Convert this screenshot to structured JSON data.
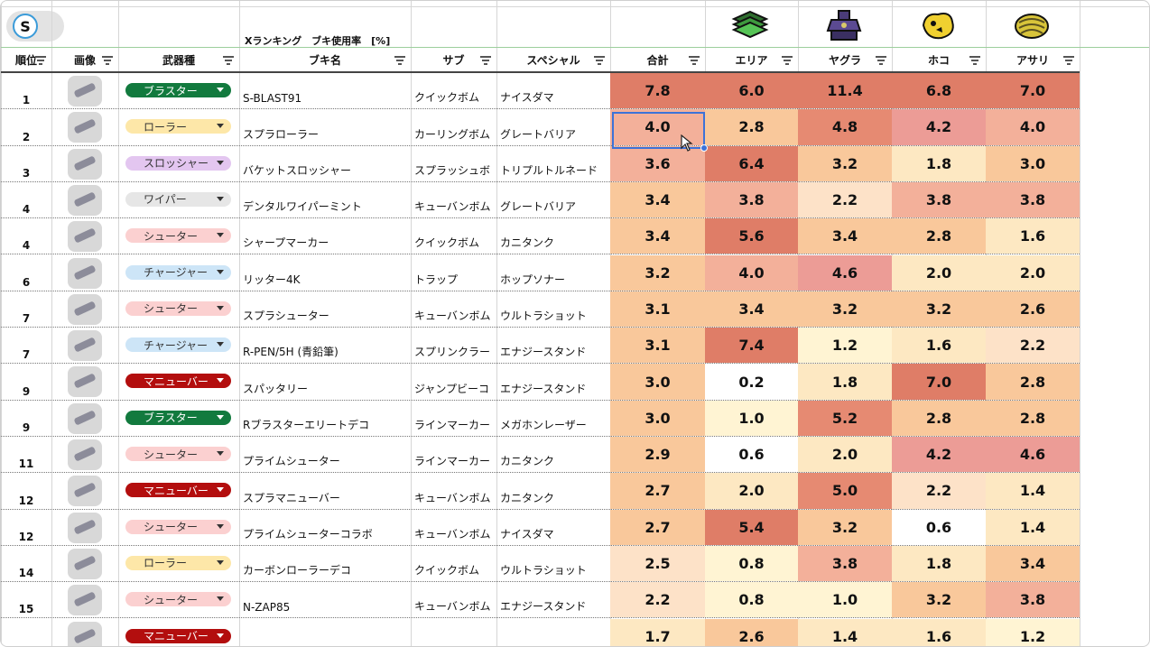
{
  "title": "Xランキング　ブキ使用率　[%]",
  "columns": [
    "順位",
    "画像",
    "武器種",
    "ブキ名",
    "サブ",
    "スペシャル",
    "合計",
    "エリア",
    "ヤグラ",
    "ホコ",
    "アサリ"
  ],
  "mode_icons": [
    "zones-mode-icon",
    "tower-mode-icon",
    "rainmaker-mode-icon",
    "clam-mode-icon"
  ],
  "chip_colors": {
    "ブラスター": {
      "bg": "#127a3e",
      "fg": "#ffffff"
    },
    "ローラー": {
      "bg": "#fde7a8",
      "fg": "#333333"
    },
    "スロッシャー": {
      "bg": "#e3c6f0",
      "fg": "#333333"
    },
    "ワイパー": {
      "bg": "#e6e6e6",
      "fg": "#333333"
    },
    "シューター": {
      "bg": "#fbd0d0",
      "fg": "#333333"
    },
    "チャージャー": {
      "bg": "#cde5f7",
      "fg": "#333333"
    },
    "マニューバー": {
      "bg": "#b30e0e",
      "fg": "#ffffff"
    }
  },
  "rows": [
    {
      "rank": "1",
      "type": "ブラスター",
      "name": "S-BLAST91",
      "sub": "クイックボム",
      "special": "ナイスダマ",
      "total": "7.8",
      "area": "6.0",
      "yagura": "11.4",
      "hoko": "6.8",
      "asari": "7.0"
    },
    {
      "rank": "2",
      "type": "ローラー",
      "name": "スプラローラー",
      "sub": "カーリングボム",
      "special": "グレートバリア",
      "total": "4.0",
      "area": "2.8",
      "yagura": "4.8",
      "hoko": "4.2",
      "asari": "4.0"
    },
    {
      "rank": "3",
      "type": "スロッシャー",
      "name": "バケットスロッシャー",
      "sub": "スプラッシュボ",
      "special": "トリプルトルネード",
      "total": "3.6",
      "area": "6.4",
      "yagura": "3.2",
      "hoko": "1.8",
      "asari": "3.0"
    },
    {
      "rank": "4",
      "type": "ワイパー",
      "name": "デンタルワイパーミント",
      "sub": "キューバンボム",
      "special": "グレートバリア",
      "total": "3.4",
      "area": "3.8",
      "yagura": "2.2",
      "hoko": "3.8",
      "asari": "3.8"
    },
    {
      "rank": "4",
      "type": "シューター",
      "name": "シャープマーカー",
      "sub": "クイックボム",
      "special": "カニタンク",
      "total": "3.4",
      "area": "5.6",
      "yagura": "3.4",
      "hoko": "2.8",
      "asari": "1.6"
    },
    {
      "rank": "6",
      "type": "チャージャー",
      "name": "リッター4K",
      "sub": "トラップ",
      "special": "ホップソナー",
      "total": "3.2",
      "area": "4.0",
      "yagura": "4.6",
      "hoko": "2.0",
      "asari": "2.0"
    },
    {
      "rank": "7",
      "type": "シューター",
      "name": "スプラシューター",
      "sub": "キューバンボム",
      "special": "ウルトラショット",
      "total": "3.1",
      "area": "3.4",
      "yagura": "3.2",
      "hoko": "3.2",
      "asari": "2.6"
    },
    {
      "rank": "7",
      "type": "チャージャー",
      "name": "R-PEN/5H (青鉛筆)",
      "sub": "スプリンクラー",
      "special": "エナジースタンド",
      "total": "3.1",
      "area": "7.4",
      "yagura": "1.2",
      "hoko": "1.6",
      "asari": "2.2"
    },
    {
      "rank": "9",
      "type": "マニューバー",
      "name": "スパッタリー",
      "sub": "ジャンプビーコ",
      "special": "エナジースタンド",
      "total": "3.0",
      "area": "0.2",
      "yagura": "1.8",
      "hoko": "7.0",
      "asari": "2.8"
    },
    {
      "rank": "9",
      "type": "ブラスター",
      "name": "Rブラスターエリートデコ",
      "sub": "ラインマーカー",
      "special": "メガホンレーザー",
      "total": "3.0",
      "area": "1.0",
      "yagura": "5.2",
      "hoko": "2.8",
      "asari": "2.8"
    },
    {
      "rank": "11",
      "type": "シューター",
      "name": "プライムシューター",
      "sub": "ラインマーカー",
      "special": "カニタンク",
      "total": "2.9",
      "area": "0.6",
      "yagura": "2.0",
      "hoko": "4.2",
      "asari": "4.6"
    },
    {
      "rank": "12",
      "type": "マニューバー",
      "name": "スプラマニューバー",
      "sub": "キューバンボム",
      "special": "カニタンク",
      "total": "2.7",
      "area": "2.0",
      "yagura": "5.0",
      "hoko": "2.2",
      "asari": "1.4"
    },
    {
      "rank": "12",
      "type": "シューター",
      "name": "プライムシューターコラボ",
      "sub": "キューバンボム",
      "special": "ナイスダマ",
      "total": "2.7",
      "area": "5.4",
      "yagura": "3.2",
      "hoko": "0.6",
      "asari": "1.4"
    },
    {
      "rank": "14",
      "type": "ローラー",
      "name": "カーボンローラーデコ",
      "sub": "クイックボム",
      "special": "ウルトラショット",
      "total": "2.5",
      "area": "0.8",
      "yagura": "3.8",
      "hoko": "1.8",
      "asari": "3.4"
    },
    {
      "rank": "15",
      "type": "シューター",
      "name": "N-ZAP85",
      "sub": "キューバンボム",
      "special": "エナジースタンド",
      "total": "2.2",
      "area": "0.8",
      "yagura": "1.0",
      "hoko": "3.2",
      "asari": "3.8"
    },
    {
      "rank": "",
      "type": "マニューバー",
      "name": "",
      "sub": "",
      "special": "",
      "total": "1.7",
      "area": "2.6",
      "yagura": "1.4",
      "hoko": "1.6",
      "asari": "1.2"
    }
  ]
}
